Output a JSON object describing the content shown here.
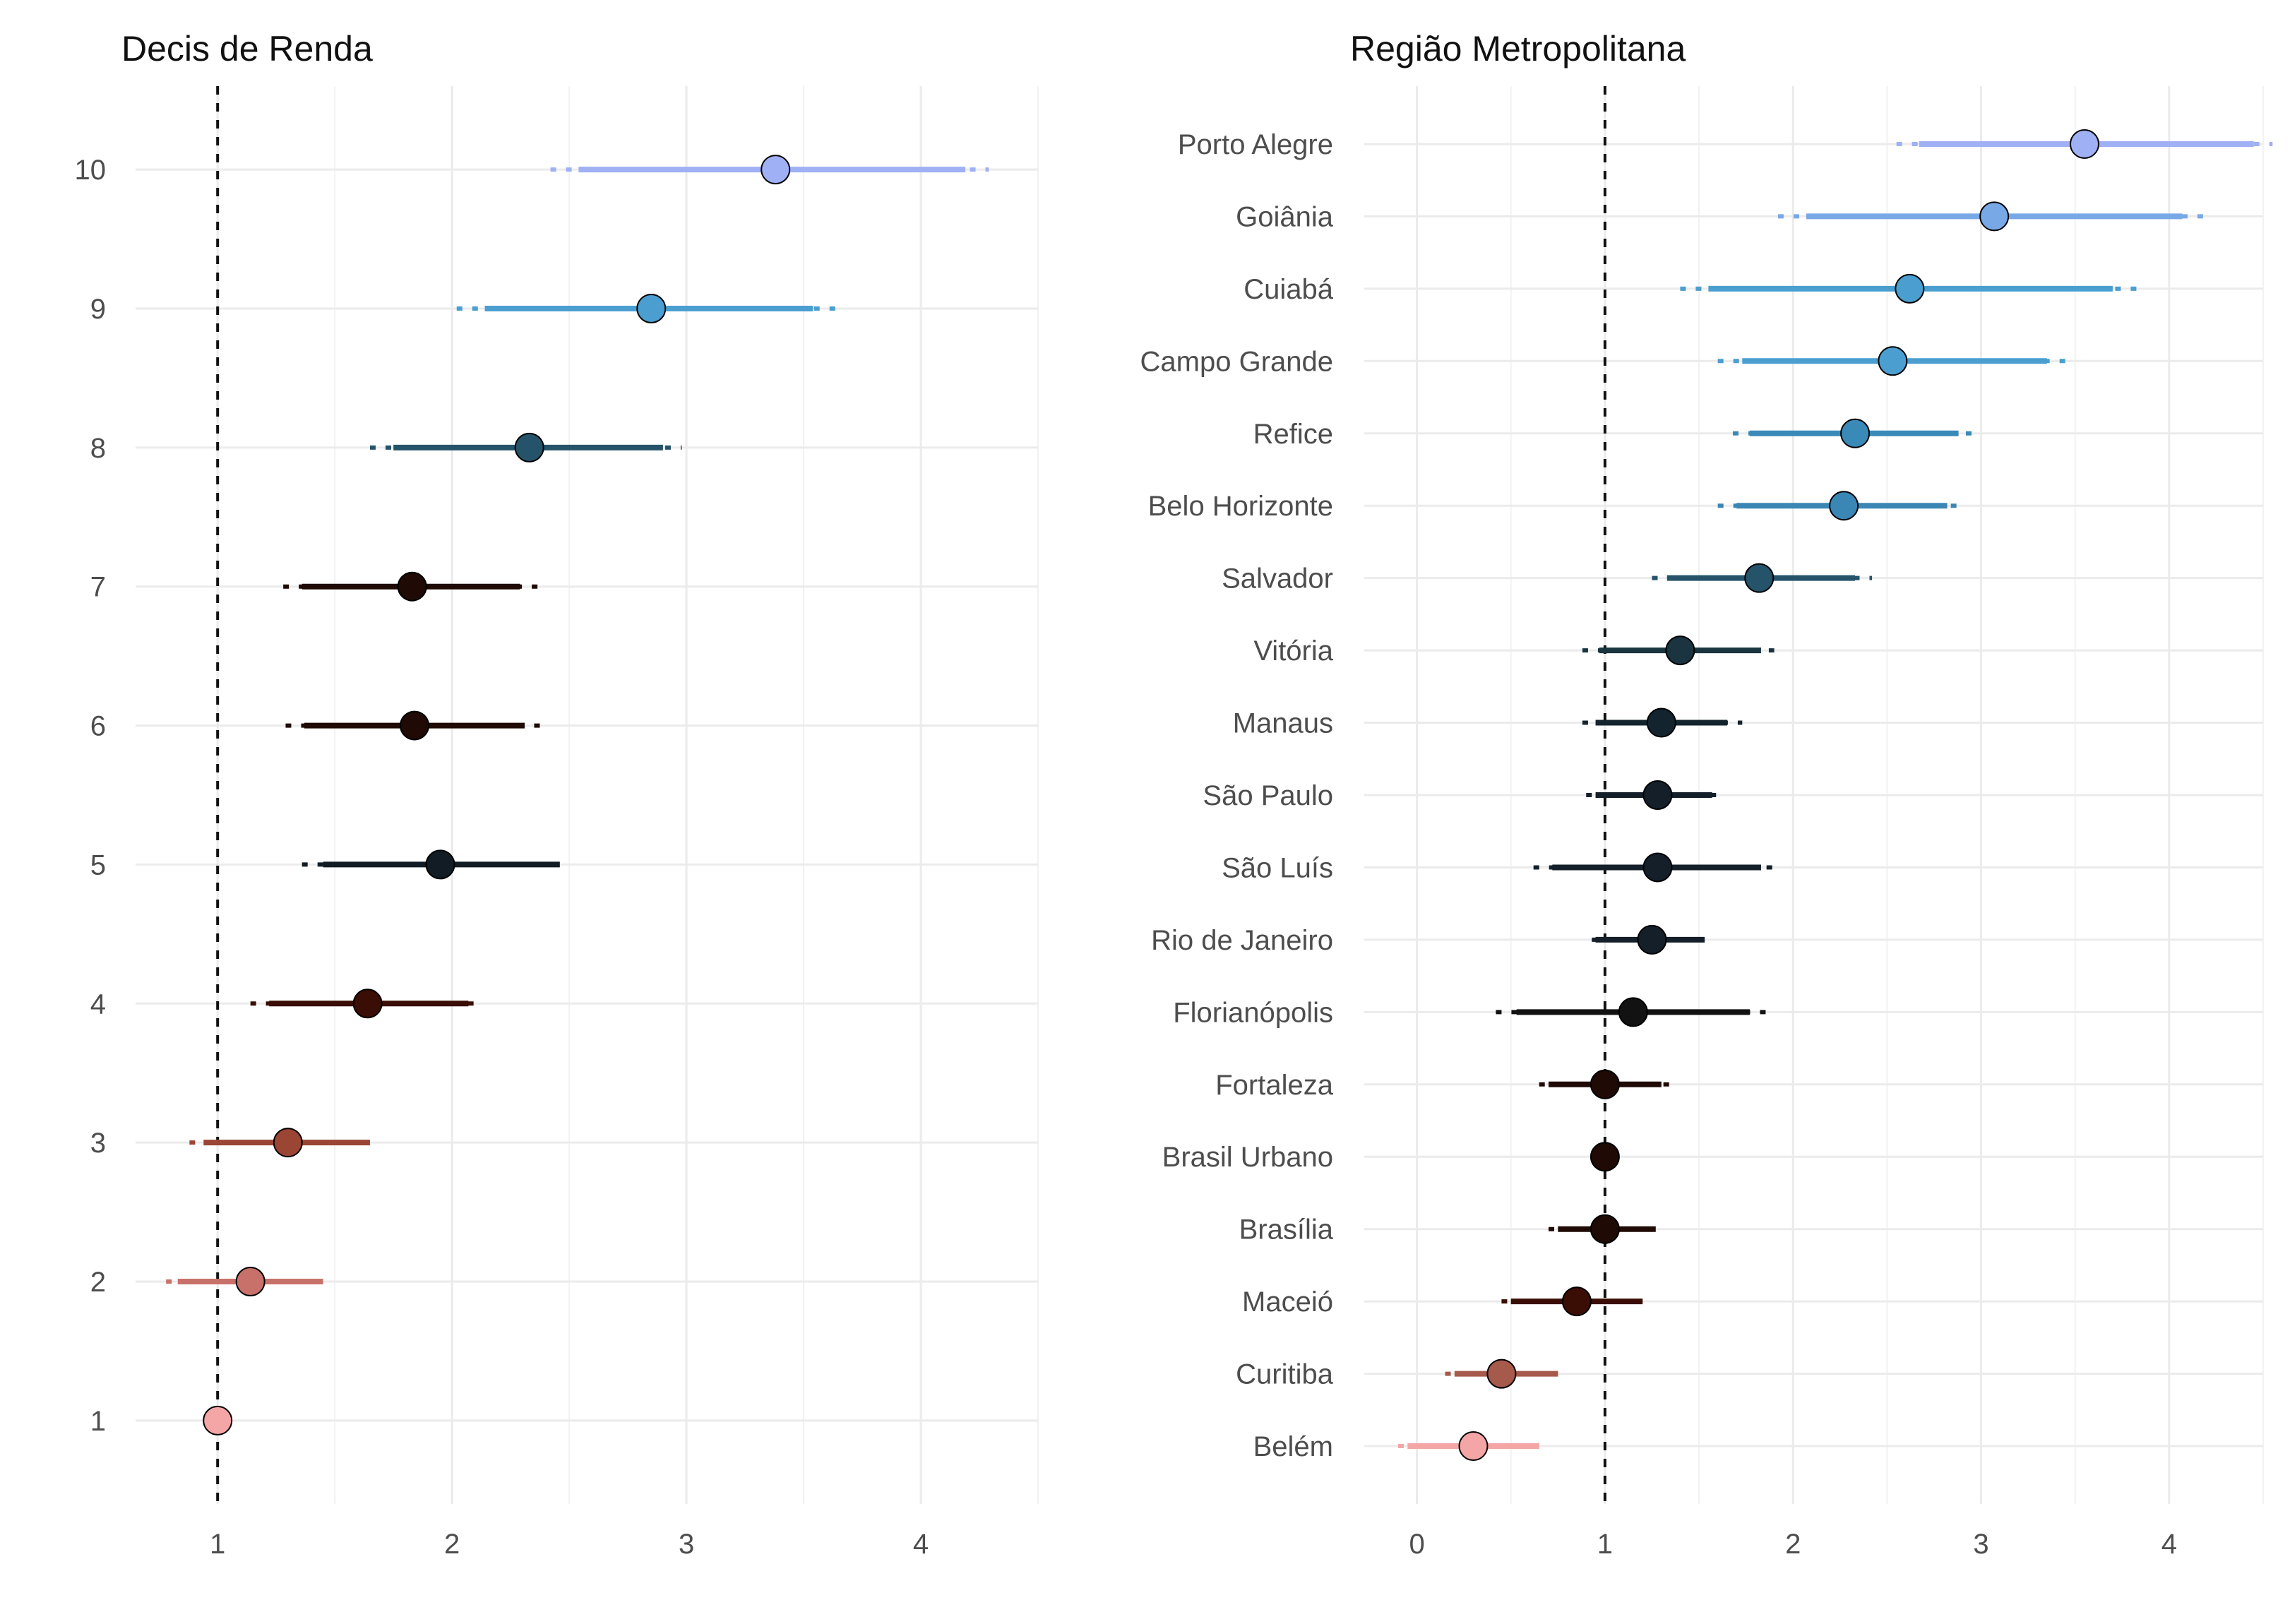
{
  "chart_data": [
    {
      "type": "dot-ci",
      "title": "Decis de Renda",
      "xlabel": "",
      "ylabel": "",
      "xlim": [
        0.65,
        4.5
      ],
      "x_ticks": [
        1,
        2,
        3,
        4
      ],
      "reference_line": 1,
      "grid": true,
      "categories": [
        "1",
        "2",
        "3",
        "4",
        "5",
        "6",
        "7",
        "8",
        "9",
        "10"
      ],
      "estimates": [
        1.0,
        1.14,
        1.3,
        1.64,
        1.95,
        1.84,
        1.83,
        2.33,
        2.85,
        3.38
      ],
      "ci90": [
        [
          1.0,
          1.0
        ],
        [
          0.83,
          1.45
        ],
        [
          0.94,
          1.65
        ],
        [
          1.22,
          2.07
        ],
        [
          1.45,
          2.46
        ],
        [
          1.37,
          2.31
        ],
        [
          1.36,
          2.29
        ],
        [
          1.75,
          2.9
        ],
        [
          2.14,
          3.54
        ],
        [
          2.54,
          4.19
        ]
      ],
      "ci95": [
        [
          1.0,
          1.0
        ],
        [
          0.78,
          1.45
        ],
        [
          0.88,
          1.65
        ],
        [
          1.14,
          2.13
        ],
        [
          1.36,
          2.46
        ],
        [
          1.29,
          2.39
        ],
        [
          1.28,
          2.37
        ],
        [
          1.65,
          2.98
        ],
        [
          2.02,
          3.66
        ],
        [
          2.42,
          4.29
        ]
      ],
      "colors": [
        "#f4a6a6",
        "#c8716a",
        "#9b4535",
        "#3a0d05",
        "#121c24",
        "#1f0a05",
        "#1f0a05",
        "#25536a",
        "#4a9ed0",
        "#9fb0f5"
      ]
    },
    {
      "type": "dot-ci",
      "title": "Região Metropolitana",
      "xlabel": "",
      "ylabel": "",
      "xlim": [
        -0.28,
        4.5
      ],
      "x_ticks": [
        0,
        1,
        2,
        3,
        4
      ],
      "reference_line": 1,
      "grid": true,
      "categories": [
        "Belém",
        "Curitiba",
        "Maceió",
        "Brasília",
        "Brasil Urbano",
        "Fortaleza",
        "Florianópolis",
        "Rio de Janeiro",
        "São Luís",
        "São Paulo",
        "Manaus",
        "Vitória",
        "Salvador",
        "Belo Horizonte",
        "Refice",
        "Campo Grande",
        "Cuiabá",
        "Goiânia",
        "Porto Alegre"
      ],
      "estimates": [
        0.3,
        0.45,
        0.85,
        1.0,
        1.0,
        1.0,
        1.15,
        1.25,
        1.28,
        1.28,
        1.3,
        1.4,
        1.82,
        2.27,
        2.33,
        2.53,
        2.62,
        3.07,
        3.55
      ],
      "ci90": [
        [
          -0.05,
          0.65
        ],
        [
          0.2,
          0.75
        ],
        [
          0.5,
          1.2
        ],
        [
          0.75,
          1.27
        ],
        [
          1.0,
          1.0
        ],
        [
          0.7,
          1.3
        ],
        [
          0.53,
          1.77
        ],
        [
          0.95,
          1.53
        ],
        [
          0.72,
          1.83
        ],
        [
          0.95,
          1.57
        ],
        [
          0.95,
          1.65
        ],
        [
          0.97,
          1.83
        ],
        [
          1.33,
          2.33
        ],
        [
          1.7,
          2.82
        ],
        [
          1.77,
          2.88
        ],
        [
          1.73,
          3.35
        ],
        [
          1.55,
          3.7
        ],
        [
          2.07,
          4.07
        ],
        [
          2.67,
          4.45
        ]
      ],
      "ci95": [
        [
          -0.1,
          0.65
        ],
        [
          0.15,
          0.75
        ],
        [
          0.45,
          1.2
        ],
        [
          0.7,
          1.27
        ],
        [
          1.0,
          1.0
        ],
        [
          0.65,
          1.37
        ],
        [
          0.42,
          1.87
        ],
        [
          0.93,
          1.53
        ],
        [
          0.62,
          1.93
        ],
        [
          0.9,
          1.63
        ],
        [
          0.88,
          1.73
        ],
        [
          0.88,
          1.9
        ],
        [
          1.25,
          2.42
        ],
        [
          1.6,
          2.92
        ],
        [
          1.68,
          2.98
        ],
        [
          1.6,
          3.47
        ],
        [
          1.4,
          3.83
        ],
        [
          1.92,
          4.22
        ],
        [
          2.55,
          4.55
        ]
      ],
      "colors": [
        "#f4a6a6",
        "#a55a4c",
        "#3a0d05",
        "#1f0a05",
        "#1f0a05",
        "#1f0a05",
        "#121212",
        "#141f2a",
        "#141f2a",
        "#141f2a",
        "#14242e",
        "#1a3440",
        "#25536a",
        "#3a86b4",
        "#3a8ab8",
        "#4a9ed0",
        "#4a9ed0",
        "#79a8e6",
        "#9fb0f5"
      ]
    }
  ]
}
